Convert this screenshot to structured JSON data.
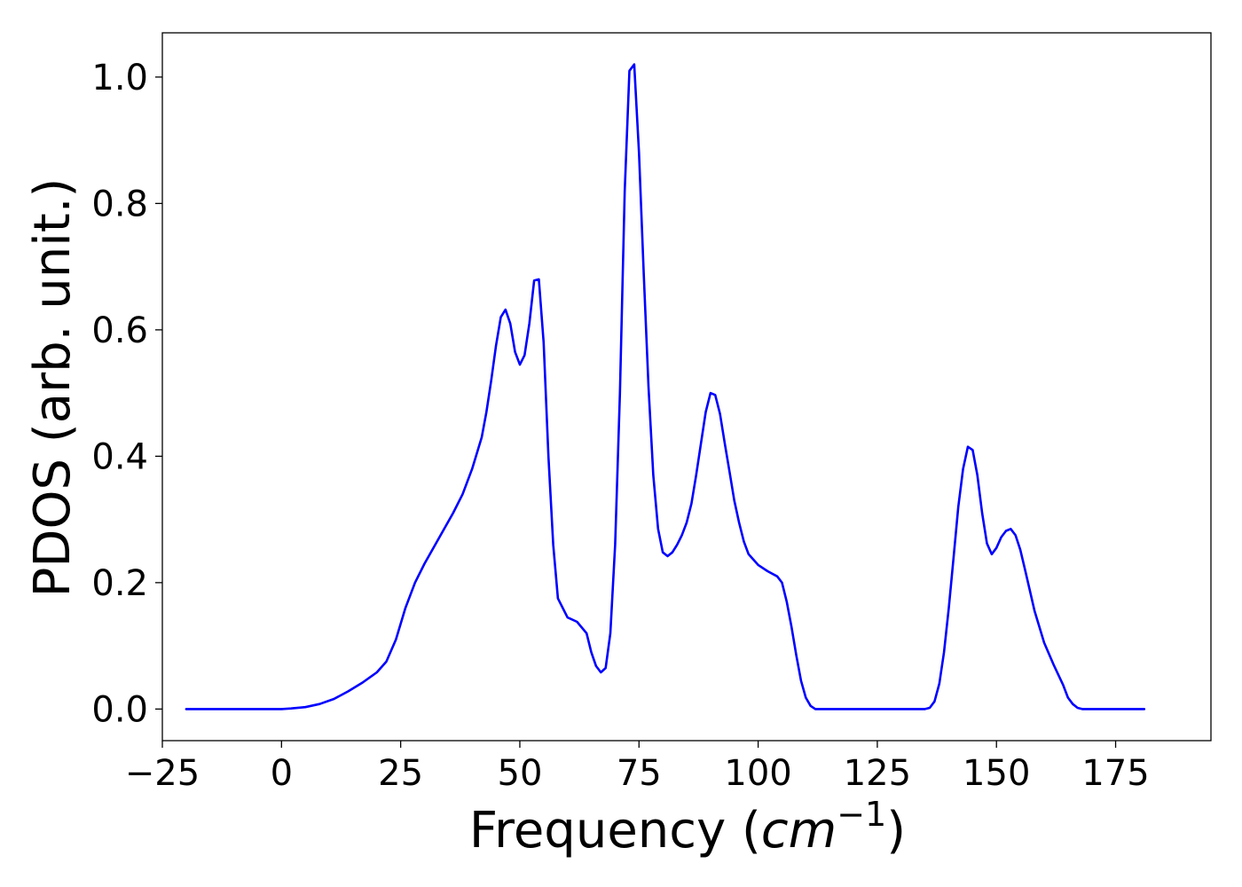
{
  "chart_data": {
    "type": "line",
    "title": "",
    "xlabel": "Frequency (",
    "xlabel_math": {
      "base": "cm",
      "superscript": "−1",
      "close": ")"
    },
    "ylabel": "PDOS (arb. unit.)",
    "xlim": [
      -25,
      195
    ],
    "ylim": [
      -0.05,
      1.07
    ],
    "xticks": [
      -25,
      0,
      25,
      50,
      75,
      100,
      125,
      150,
      175
    ],
    "xtick_labels": [
      "−25",
      "0",
      "25",
      "50",
      "75",
      "100",
      "125",
      "150",
      "175"
    ],
    "yticks": [
      0.0,
      0.2,
      0.4,
      0.6,
      0.8,
      1.0
    ],
    "ytick_labels": [
      "0.0",
      "0.2",
      "0.4",
      "0.6",
      "0.8",
      "1.0"
    ],
    "grid": false,
    "legend": "none",
    "series": [
      {
        "color": "#0000ff",
        "x": [
          -20,
          0,
          2,
          5,
          8,
          11,
          14,
          17,
          20,
          22,
          24,
          26,
          28,
          30,
          33,
          36,
          38,
          40,
          42,
          43,
          44,
          45,
          46,
          47,
          48,
          49,
          50,
          51,
          52,
          53,
          54,
          55,
          56,
          57,
          58,
          60,
          62,
          64,
          65,
          66,
          67,
          68,
          69,
          70,
          71,
          72,
          73,
          74,
          75,
          76,
          77,
          78,
          79,
          80,
          81,
          82,
          83,
          84,
          85,
          86,
          87,
          88,
          89,
          90,
          91,
          92,
          93,
          94,
          95,
          96,
          97,
          98,
          100,
          102,
          104,
          105,
          106,
          107,
          108,
          109,
          110,
          111,
          112,
          135,
          136,
          137,
          138,
          139,
          140,
          141,
          142,
          143,
          144,
          145,
          146,
          147,
          148,
          149,
          150,
          151,
          152,
          153,
          154,
          155,
          156,
          157,
          158,
          160,
          162,
          164,
          165,
          166,
          167,
          168,
          169,
          170,
          180,
          181
        ],
        "y": [
          0.0,
          0.0,
          0.001,
          0.003,
          0.008,
          0.016,
          0.028,
          0.042,
          0.058,
          0.075,
          0.11,
          0.16,
          0.2,
          0.23,
          0.27,
          0.31,
          0.34,
          0.38,
          0.43,
          0.47,
          0.52,
          0.575,
          0.62,
          0.632,
          0.61,
          0.565,
          0.545,
          0.56,
          0.61,
          0.678,
          0.68,
          0.58,
          0.4,
          0.26,
          0.175,
          0.145,
          0.138,
          0.12,
          0.09,
          0.068,
          0.058,
          0.065,
          0.12,
          0.26,
          0.5,
          0.82,
          1.01,
          1.02,
          0.88,
          0.69,
          0.51,
          0.37,
          0.285,
          0.248,
          0.242,
          0.248,
          0.26,
          0.275,
          0.295,
          0.325,
          0.37,
          0.42,
          0.47,
          0.5,
          0.497,
          0.467,
          0.42,
          0.375,
          0.33,
          0.295,
          0.265,
          0.245,
          0.228,
          0.218,
          0.21,
          0.2,
          0.17,
          0.13,
          0.085,
          0.045,
          0.018,
          0.005,
          0.0,
          0.0,
          0.002,
          0.012,
          0.04,
          0.09,
          0.16,
          0.24,
          0.32,
          0.38,
          0.415,
          0.41,
          0.37,
          0.31,
          0.262,
          0.245,
          0.255,
          0.272,
          0.282,
          0.285,
          0.275,
          0.252,
          0.22,
          0.188,
          0.155,
          0.105,
          0.07,
          0.038,
          0.018,
          0.008,
          0.002,
          0.0,
          0.0,
          0.0,
          0.0,
          0.0
        ]
      }
    ]
  }
}
